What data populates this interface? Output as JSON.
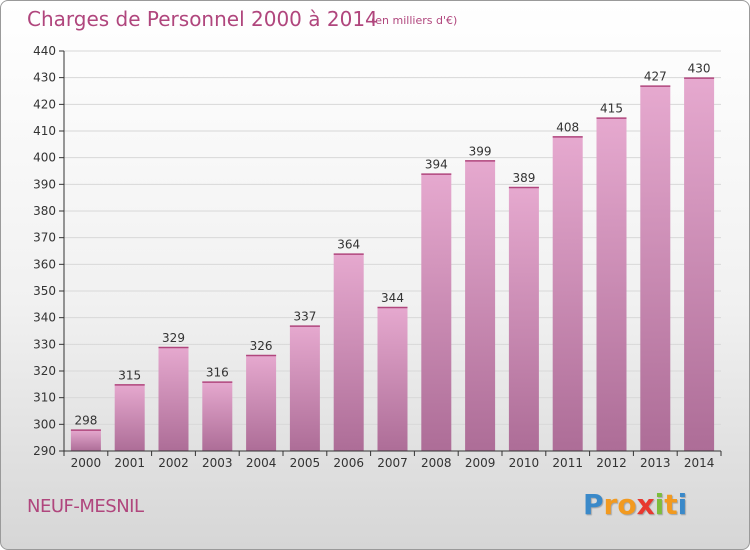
{
  "header": {
    "title": "Charges de Personnel 2000 à 2014",
    "unit": "(en milliers d'€)"
  },
  "footer": {
    "commune": "NEUF-MESNIL",
    "logo": {
      "letters": [
        "P",
        "r",
        "o",
        "x",
        "i",
        "t",
        "i"
      ],
      "colors": [
        "#3a89c9",
        "#f29a1f",
        "#f29a1f",
        "#e8382f",
        "#7cbd3c",
        "#f29a1f",
        "#3a89c9"
      ]
    }
  },
  "colors": {
    "title": "#b0467d",
    "bar_light": "#e6a9cf",
    "bar_dark": "#ad6d97",
    "grid": "#d8d8d8",
    "axis": "#333333"
  },
  "chart_data": {
    "type": "bar",
    "categories": [
      "2000",
      "2001",
      "2002",
      "2003",
      "2004",
      "2005",
      "2006",
      "2007",
      "2008",
      "2009",
      "2010",
      "2011",
      "2012",
      "2013",
      "2014"
    ],
    "values": [
      298,
      315,
      329,
      316,
      326,
      337,
      364,
      344,
      394,
      399,
      389,
      408,
      415,
      427,
      430
    ],
    "data_labels": [
      "298",
      "315",
      "329",
      "316",
      "326",
      "337",
      "364",
      "344",
      "394",
      "399",
      "389",
      "408",
      "415",
      "427",
      "430"
    ],
    "ylim": [
      290,
      440
    ],
    "yticks": [
      290,
      300,
      310,
      320,
      330,
      340,
      350,
      360,
      370,
      380,
      390,
      400,
      410,
      420,
      430,
      440
    ],
    "grid": true,
    "legend": "none"
  }
}
